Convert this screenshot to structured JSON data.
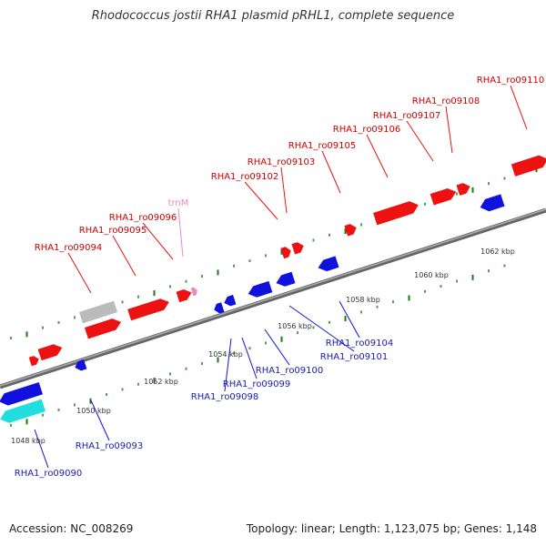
{
  "title": "Rhodococcus jostii RHA1 plasmid pRHL1, complete sequence",
  "footer": {
    "accession": "Accession: NC_008269",
    "topology": "Topology: linear; Length: 1,123,075 bp; Genes: 1,148"
  },
  "colors": {
    "forward_gene": "#ee1111",
    "reverse_gene": "#1111dd",
    "pseudo_gene": "#bbbbbb",
    "highlight_gene": "#22dddd",
    "trna": "#ee88cc",
    "backbone": "#888888",
    "tick_major": "#1a7a1a",
    "tick_minor": "#44aa44"
  },
  "scale_labels": [
    "1048 kbp",
    "1050 kbp",
    "1052 kbp",
    "1054 kbp",
    "1056 kbp",
    "1058 kbp",
    "1060 kbp",
    "1062 kbp"
  ],
  "forward_labels": [
    {
      "text": "RHA1_ro09094",
      "type": "gene"
    },
    {
      "text": "RHA1_ro09095",
      "type": "gene"
    },
    {
      "text": "RHA1_ro09096",
      "type": "gene"
    },
    {
      "text": "trnM",
      "type": "trna"
    },
    {
      "text": "RHA1_ro09102",
      "type": "gene"
    },
    {
      "text": "RHA1_ro09103",
      "type": "gene"
    },
    {
      "text": "RHA1_ro09105",
      "type": "gene"
    },
    {
      "text": "RHA1_ro09106",
      "type": "gene"
    },
    {
      "text": "RHA1_ro09107",
      "type": "gene"
    },
    {
      "text": "RHA1_ro09108",
      "type": "gene"
    },
    {
      "text": "RHA1_ro09110",
      "type": "gene"
    }
  ],
  "reverse_labels": [
    {
      "text": "RHA1_ro09090"
    },
    {
      "text": "RHA1_ro09093"
    },
    {
      "text": "RHA1_ro09098"
    },
    {
      "text": "RHA1_ro09099"
    },
    {
      "text": "RHA1_ro09100"
    },
    {
      "text": "RHA1_ro09101"
    },
    {
      "text": "RHA1_ro09104"
    }
  ]
}
